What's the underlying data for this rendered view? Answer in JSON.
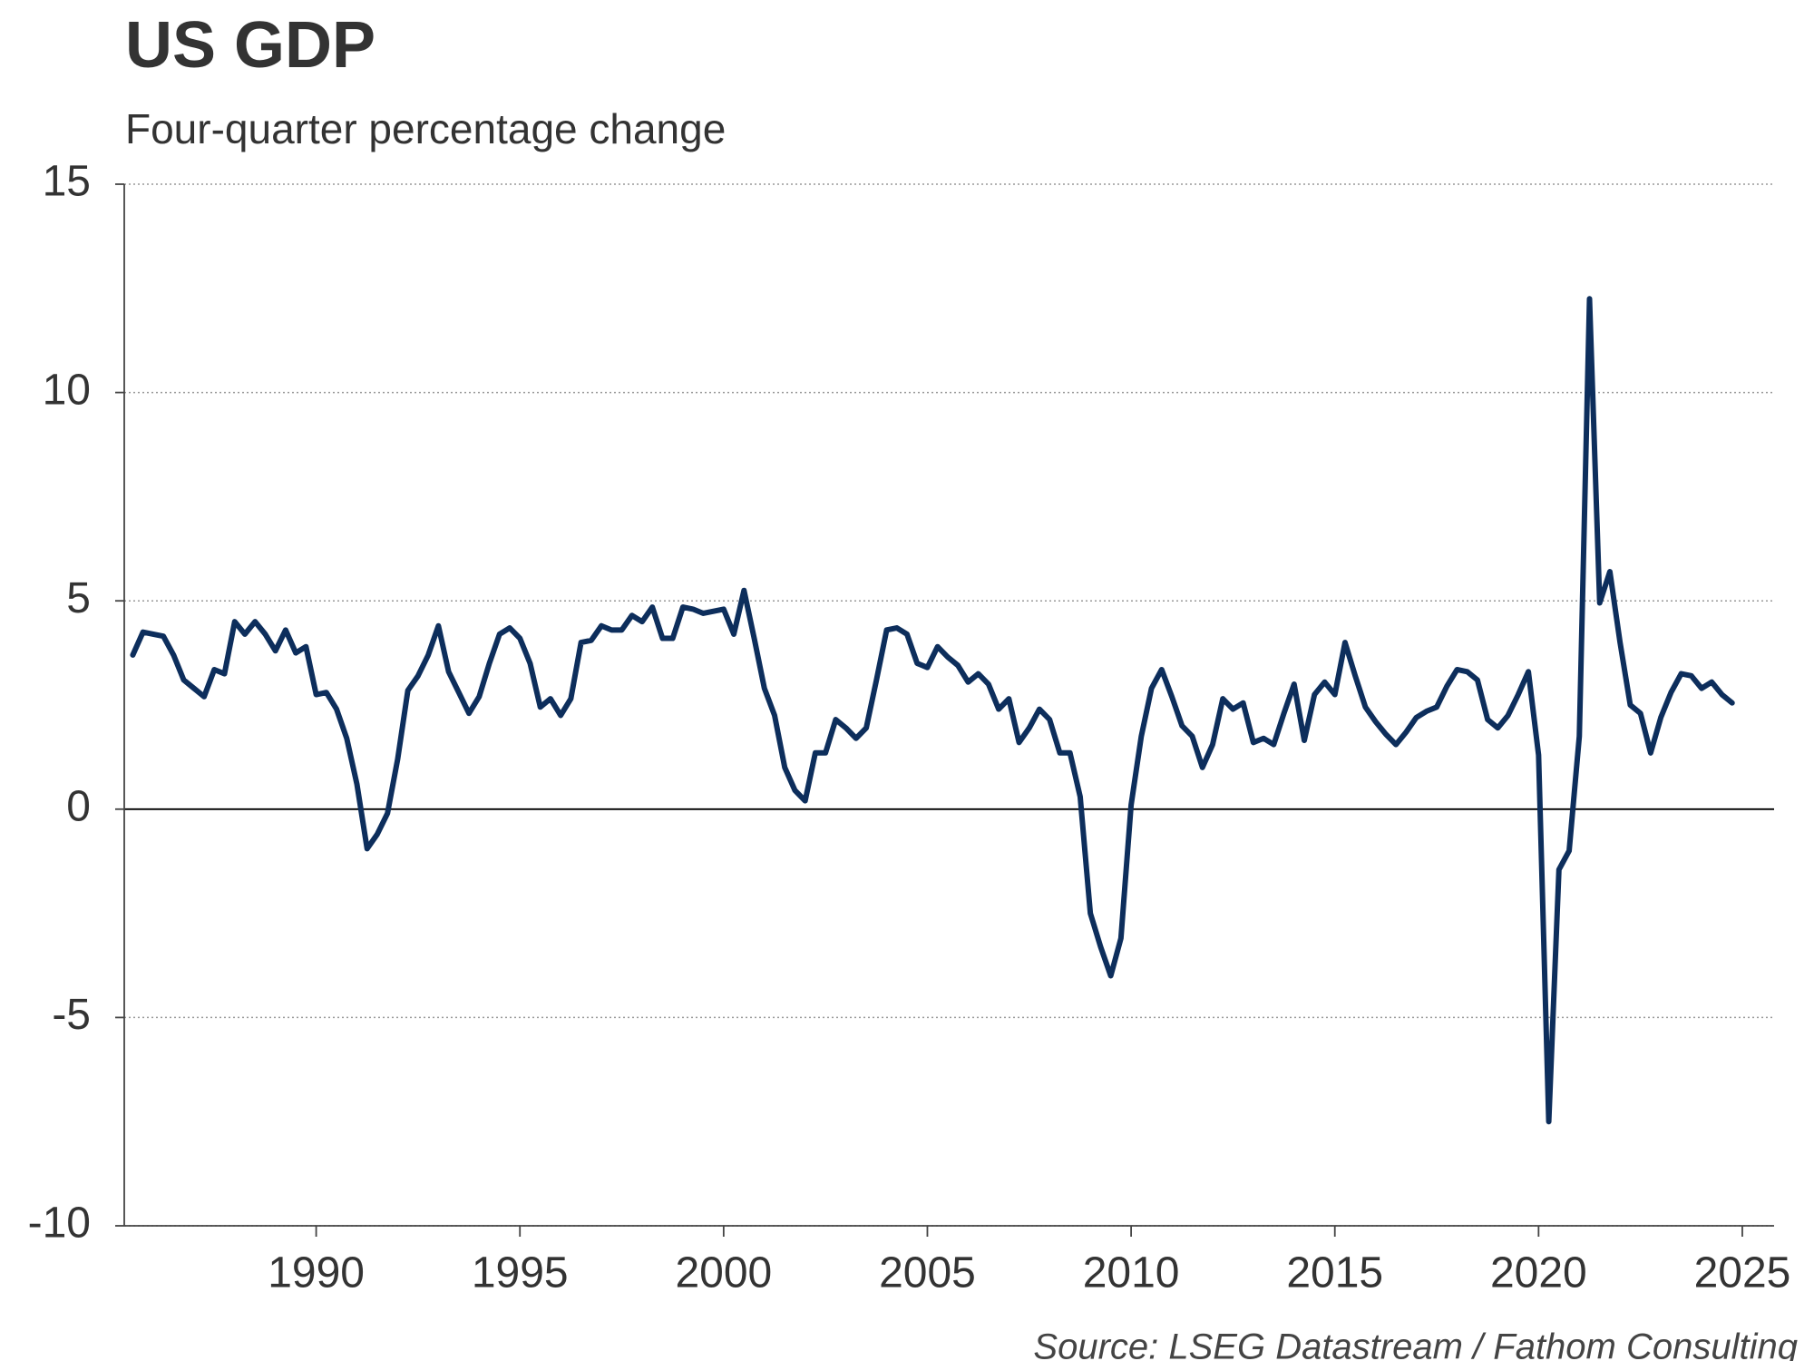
{
  "chart_data": {
    "type": "line",
    "title": "US GDP",
    "subtitle": "Four-quarter percentage change",
    "source": "Source: LSEG Datastream / Fathom Consulting",
    "color": "#0d2e5c",
    "grid": true,
    "x": [
      1985.5,
      1985.75,
      1986,
      1986.25,
      1986.5,
      1986.75,
      1987,
      1987.25,
      1987.5,
      1987.75,
      1988,
      1988.25,
      1988.5,
      1988.75,
      1989,
      1989.25,
      1989.5,
      1989.75,
      1990,
      1990.25,
      1990.5,
      1990.75,
      1991,
      1991.25,
      1991.5,
      1991.75,
      1992,
      1992.25,
      1992.5,
      1992.75,
      1993,
      1993.25,
      1993.5,
      1993.75,
      1994,
      1994.25,
      1994.5,
      1994.75,
      1995,
      1995.25,
      1995.5,
      1995.75,
      1996,
      1996.25,
      1996.5,
      1996.75,
      1997,
      1997.25,
      1997.5,
      1997.75,
      1998,
      1998.25,
      1998.5,
      1998.75,
      1999,
      1999.25,
      1999.5,
      1999.75,
      2000,
      2000.25,
      2000.5,
      2000.75,
      2001,
      2001.25,
      2001.5,
      2001.75,
      2002,
      2002.25,
      2002.5,
      2002.75,
      2003,
      2003.25,
      2003.5,
      2003.75,
      2004,
      2004.25,
      2004.5,
      2004.75,
      2005,
      2005.25,
      2005.5,
      2005.75,
      2006,
      2006.25,
      2006.5,
      2006.75,
      2007,
      2007.25,
      2007.5,
      2007.75,
      2008,
      2008.25,
      2008.5,
      2008.75,
      2009,
      2009.25,
      2009.5,
      2009.75,
      2010,
      2010.25,
      2010.5,
      2010.75,
      2011,
      2011.25,
      2011.5,
      2011.75,
      2012,
      2012.25,
      2012.5,
      2012.75,
      2013,
      2013.25,
      2013.5,
      2013.75,
      2014,
      2014.25,
      2014.5,
      2014.75,
      2015,
      2015.25,
      2015.5,
      2015.75,
      2016,
      2016.25,
      2016.5,
      2016.75,
      2017,
      2017.25,
      2017.5,
      2017.75,
      2018,
      2018.25,
      2018.5,
      2018.75,
      2019,
      2019.25,
      2019.5,
      2019.75,
      2020,
      2020.25,
      2020.5,
      2020.75,
      2021,
      2021.25,
      2021.5,
      2021.75,
      2022,
      2022.25,
      2022.5,
      2022.75,
      2023,
      2023.25,
      2023.5,
      2023.75,
      2024,
      2024.25,
      2024.5,
      2024.75
    ],
    "values": [
      3.7,
      4.25,
      4.2,
      4.15,
      3.7,
      3.1,
      2.9,
      2.7,
      3.35,
      3.25,
      4.5,
      4.2,
      4.5,
      4.2,
      3.8,
      4.3,
      3.75,
      3.9,
      2.75,
      2.8,
      2.4,
      1.7,
      0.6,
      -0.95,
      -0.6,
      -0.1,
      1.2,
      2.85,
      3.2,
      3.7,
      4.4,
      3.3,
      2.8,
      2.3,
      2.7,
      3.5,
      4.2,
      4.35,
      4.1,
      3.5,
      2.45,
      2.65,
      2.25,
      2.65,
      4.0,
      4.05,
      4.4,
      4.3,
      4.3,
      4.65,
      4.5,
      4.85,
      4.1,
      4.1,
      4.85,
      4.8,
      4.7,
      4.75,
      4.8,
      4.2,
      5.25,
      4.1,
      2.9,
      2.25,
      1.0,
      0.45,
      0.2,
      1.35,
      1.35,
      2.15,
      1.95,
      1.7,
      1.95,
      3.1,
      4.3,
      4.35,
      4.2,
      3.5,
      3.4,
      3.9,
      3.65,
      3.45,
      3.05,
      3.25,
      3.0,
      2.4,
      2.65,
      1.6,
      1.95,
      2.4,
      2.15,
      1.35,
      1.35,
      0.3,
      -2.5,
      -3.3,
      -4.0,
      -3.1,
      0.1,
      1.75,
      2.9,
      3.35,
      2.7,
      2.0,
      1.75,
      1.0,
      1.55,
      2.65,
      2.4,
      2.55,
      1.6,
      1.7,
      1.55,
      2.3,
      3.0,
      1.65,
      2.75,
      3.05,
      2.75,
      4.0,
      3.2,
      2.45,
      2.1,
      1.8,
      1.55,
      1.85,
      2.2,
      2.35,
      2.45,
      2.95,
      3.35,
      3.3,
      3.1,
      2.15,
      1.95,
      2.25,
      2.75,
      3.3,
      1.3,
      -7.5,
      -1.45,
      -1.0,
      1.75,
      12.25,
      4.95,
      5.7,
      4.0,
      2.5,
      2.3,
      1.35,
      2.2,
      2.8,
      3.25,
      3.2,
      2.9,
      3.05,
      2.75,
      2.55
    ],
    "xlim": [
      1985.29,
      2025.78
    ],
    "xticks": [
      1990,
      1995,
      2000,
      2005,
      2010,
      2015,
      2020,
      2025
    ],
    "ylim": [
      -10,
      15
    ],
    "yticks": [
      -10,
      -5,
      0,
      5,
      10,
      15
    ]
  }
}
